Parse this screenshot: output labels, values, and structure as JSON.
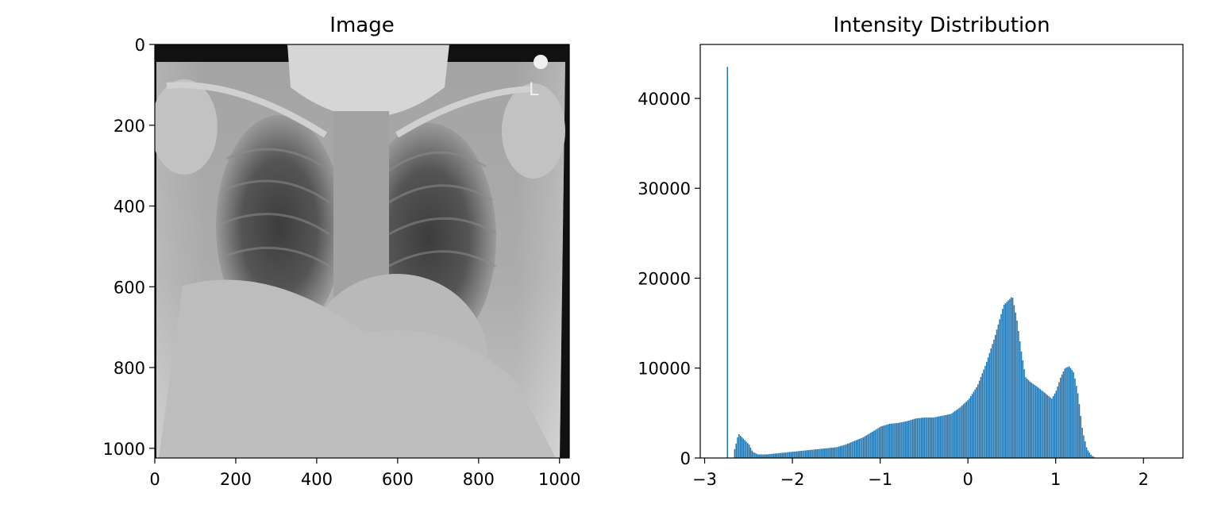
{
  "chart_data": [
    {
      "type": "image",
      "title": "Image",
      "xlim": [
        0,
        1024
      ],
      "ylim": [
        0,
        1024
      ],
      "x_ticks": [
        0,
        200,
        400,
        600,
        800,
        1000
      ],
      "y_ticks": [
        0,
        200,
        400,
        600,
        800,
        1000
      ],
      "y_inverted": true,
      "image_description": "grayscale chest X-ray, frontal view, with an \"L\" side marker in the upper right"
    },
    {
      "type": "bar",
      "title": "Intensity Distribution",
      "xlabel": "",
      "ylabel": "",
      "xlim": [
        -3.05,
        2.45
      ],
      "ylim": [
        0,
        46000
      ],
      "x_ticks": [
        -3,
        -2,
        -1,
        0,
        1,
        2
      ],
      "x_tick_labels": [
        "−3",
        "−2",
        "−1",
        "0",
        "1",
        "2"
      ],
      "y_ticks": [
        0,
        10000,
        20000,
        30000,
        40000
      ],
      "y_tick_labels": [
        "0",
        "10000",
        "20000",
        "30000",
        "40000"
      ],
      "bar_color": "#1f77b4",
      "grid": false,
      "points": [
        [
          -2.76,
          1200
        ],
        [
          -2.74,
          43500
        ],
        [
          -2.66,
          1000
        ],
        [
          -2.64,
          2000
        ],
        [
          -2.62,
          2700
        ],
        [
          -2.58,
          2300
        ],
        [
          -2.54,
          1900
        ],
        [
          -2.5,
          1500
        ],
        [
          -2.46,
          700
        ],
        [
          -2.4,
          400
        ],
        [
          -2.3,
          400
        ],
        [
          -2.2,
          500
        ],
        [
          -2.1,
          600
        ],
        [
          -2.0,
          700
        ],
        [
          -1.9,
          800
        ],
        [
          -1.8,
          900
        ],
        [
          -1.7,
          1000
        ],
        [
          -1.6,
          1100
        ],
        [
          -1.5,
          1200
        ],
        [
          -1.4,
          1500
        ],
        [
          -1.3,
          1900
        ],
        [
          -1.2,
          2300
        ],
        [
          -1.1,
          2900
        ],
        [
          -1.0,
          3500
        ],
        [
          -0.9,
          3800
        ],
        [
          -0.8,
          3900
        ],
        [
          -0.7,
          4100
        ],
        [
          -0.6,
          4400
        ],
        [
          -0.5,
          4500
        ],
        [
          -0.4,
          4500
        ],
        [
          -0.3,
          4700
        ],
        [
          -0.2,
          4900
        ],
        [
          -0.1,
          5600
        ],
        [
          0.0,
          6500
        ],
        [
          0.1,
          8000
        ],
        [
          0.2,
          10500
        ],
        [
          0.3,
          13500
        ],
        [
          0.4,
          17000
        ],
        [
          0.45,
          17500
        ],
        [
          0.5,
          18000
        ],
        [
          0.55,
          15500
        ],
        [
          0.6,
          12000
        ],
        [
          0.65,
          9000
        ],
        [
          0.7,
          8500
        ],
        [
          0.8,
          7800
        ],
        [
          0.9,
          7000
        ],
        [
          0.95,
          6600
        ],
        [
          1.0,
          7500
        ],
        [
          1.05,
          9000
        ],
        [
          1.1,
          10000
        ],
        [
          1.15,
          10200
        ],
        [
          1.2,
          9500
        ],
        [
          1.25,
          7000
        ],
        [
          1.3,
          3000
        ],
        [
          1.35,
          1000
        ],
        [
          1.4,
          300
        ],
        [
          1.45,
          0
        ]
      ]
    }
  ]
}
